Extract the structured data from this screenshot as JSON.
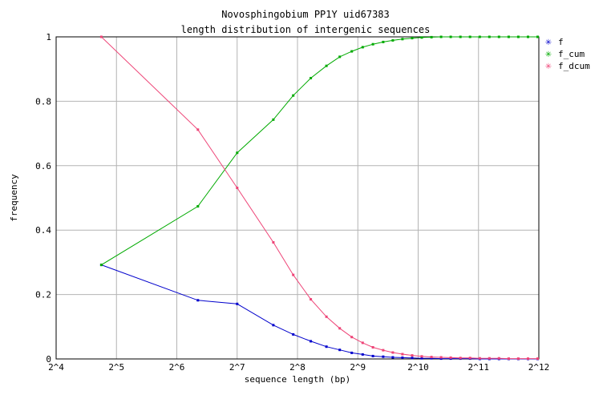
{
  "chart_data": {
    "type": "line",
    "title": "Novosphingobium PP1Y uid67383",
    "subtitle": "length distribution of intergenic sequences",
    "xlabel": "sequence length (bp)",
    "ylabel": "frequency",
    "x_scale": "log2",
    "xlim_log2": [
      4,
      12
    ],
    "ylim": [
      0,
      1
    ],
    "grid": true,
    "legend_position": "right",
    "x_tick_labels": [
      "2^4",
      "2^5",
      "2^6",
      "2^7",
      "2^8",
      "2^9",
      "2^10",
      "2^11",
      "2^12"
    ],
    "y_tick_labels": [
      "0",
      "0.2",
      "0.4",
      "0.6",
      "0.8",
      "1"
    ],
    "series": [
      {
        "name": "f",
        "color": "#0000cc",
        "x_log2": [
          4.75,
          6.35,
          7.0,
          7.6,
          7.93,
          8.22,
          8.48,
          8.7,
          8.9,
          9.08,
          9.25,
          9.42,
          9.58,
          9.74,
          9.9,
          10.06,
          10.22,
          10.38,
          10.54,
          10.7,
          10.86,
          11.02,
          11.18,
          11.34,
          11.5,
          11.66,
          11.82,
          11.98
        ],
        "values": [
          0.292,
          0.182,
          0.171,
          0.105,
          0.076,
          0.055,
          0.038,
          0.028,
          0.019,
          0.014,
          0.009,
          0.007,
          0.005,
          0.004,
          0.003,
          0.002,
          0.002,
          0.001,
          0.001,
          0.001,
          0.001,
          0.0,
          0.0,
          0.0,
          0.0,
          0.0,
          0.0,
          0.0
        ]
      },
      {
        "name": "f_cum",
        "color": "#00aa00",
        "x_log2": [
          4.75,
          6.35,
          7.0,
          7.6,
          7.93,
          8.22,
          8.48,
          8.7,
          8.9,
          9.08,
          9.25,
          9.42,
          9.58,
          9.74,
          9.9,
          10.06,
          10.22,
          10.38,
          10.54,
          10.7,
          10.86,
          11.02,
          11.18,
          11.34,
          11.5,
          11.66,
          11.82,
          11.98
        ],
        "values": [
          0.292,
          0.474,
          0.64,
          0.743,
          0.818,
          0.872,
          0.91,
          0.938,
          0.955,
          0.968,
          0.977,
          0.984,
          0.989,
          0.993,
          0.996,
          0.998,
          0.999,
          1.0,
          1.0,
          1.0,
          1.0,
          1.0,
          1.0,
          1.0,
          1.0,
          1.0,
          1.0,
          1.0
        ]
      },
      {
        "name": "f_dcum",
        "color": "#ee4477",
        "x_log2": [
          4.75,
          6.35,
          7.0,
          7.6,
          7.93,
          8.22,
          8.48,
          8.7,
          8.9,
          9.08,
          9.25,
          9.42,
          9.58,
          9.74,
          9.9,
          10.06,
          10.22,
          10.38,
          10.54,
          10.7,
          10.86,
          11.02,
          11.18,
          11.34,
          11.5,
          11.66,
          11.82,
          11.98
        ],
        "values": [
          1.0,
          0.712,
          0.531,
          0.362,
          0.261,
          0.185,
          0.131,
          0.095,
          0.068,
          0.05,
          0.036,
          0.027,
          0.02,
          0.015,
          0.011,
          0.008,
          0.006,
          0.005,
          0.004,
          0.003,
          0.003,
          0.002,
          0.002,
          0.002,
          0.001,
          0.001,
          0.001,
          0.001
        ]
      }
    ]
  }
}
